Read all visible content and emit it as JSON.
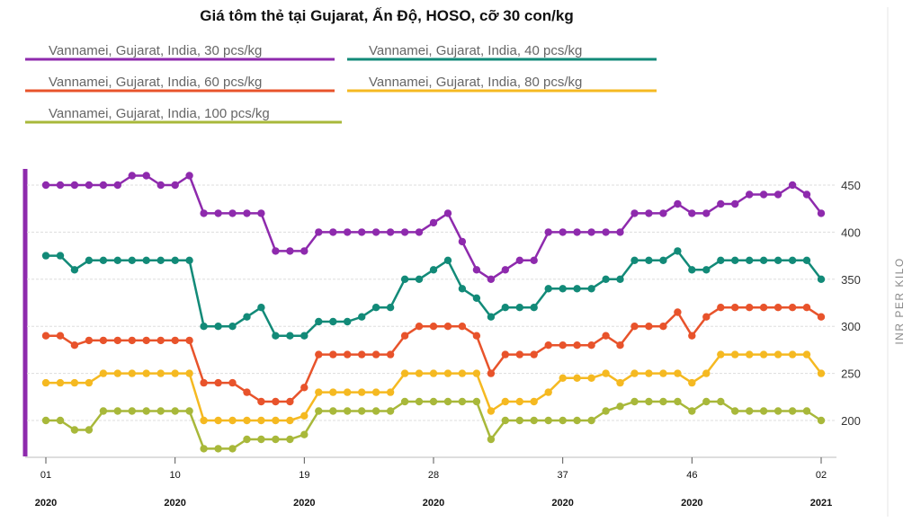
{
  "chart_data": {
    "type": "line",
    "title": "Giá tôm thẻ tại Gujarat, Ấn Độ, HOSO, cỡ 30 con/kg",
    "ylabel": "INR PER KILO",
    "xlabel": "",
    "ylim": [
      155,
      475
    ],
    "yticks": [
      200,
      250,
      300,
      350,
      400,
      450
    ],
    "grid": true,
    "legend_position": "top-left",
    "x_ticks": [
      {
        "week": "01",
        "year": "2020",
        "index": 0
      },
      {
        "week": "10",
        "year": "2020",
        "index": 9
      },
      {
        "week": "19",
        "year": "2020",
        "index": 18
      },
      {
        "week": "28",
        "year": "2020",
        "index": 27
      },
      {
        "week": "37",
        "year": "2020",
        "index": 36
      },
      {
        "week": "46",
        "year": "2020",
        "index": 45
      },
      {
        "week": "02",
        "year": "2021",
        "index": 54
      }
    ],
    "series": [
      {
        "name": "Vannamei, Gujarat, India, 30 pcs/kg",
        "color": "#8e2aad",
        "values": [
          450,
          450,
          450,
          450,
          450,
          450,
          460,
          460,
          450,
          450,
          460,
          420,
          420,
          420,
          420,
          420,
          380,
          380,
          380,
          400,
          400,
          400,
          400,
          400,
          400,
          400,
          400,
          410,
          420,
          390,
          360,
          350,
          360,
          370,
          370,
          400,
          400,
          400,
          400,
          400,
          400,
          420,
          420,
          420,
          430,
          420,
          420,
          430,
          430,
          440,
          440,
          440,
          450,
          440,
          420
        ]
      },
      {
        "name": "Vannamei, Gujarat, India, 40 pcs/kg",
        "color": "#128a78",
        "values": [
          375,
          375,
          360,
          370,
          370,
          370,
          370,
          370,
          370,
          370,
          370,
          300,
          300,
          300,
          310,
          320,
          290,
          290,
          290,
          305,
          305,
          305,
          310,
          320,
          320,
          350,
          350,
          360,
          370,
          340,
          330,
          310,
          320,
          320,
          320,
          340,
          340,
          340,
          340,
          350,
          350,
          370,
          370,
          370,
          380,
          360,
          360,
          370,
          370,
          370,
          370,
          370,
          370,
          370,
          350
        ]
      },
      {
        "name": "Vannamei, Gujarat, India, 60 pcs/kg",
        "color": "#e8532b",
        "values": [
          290,
          290,
          280,
          285,
          285,
          285,
          285,
          285,
          285,
          285,
          285,
          240,
          240,
          240,
          230,
          220,
          220,
          220,
          235,
          270,
          270,
          270,
          270,
          270,
          270,
          290,
          300,
          300,
          300,
          300,
          290,
          250,
          270,
          270,
          270,
          280,
          280,
          280,
          280,
          290,
          280,
          300,
          300,
          300,
          315,
          290,
          310,
          320,
          320,
          320,
          320,
          320,
          320,
          320,
          310
        ]
      },
      {
        "name": "Vannamei, Gujarat, India, 80 pcs/kg",
        "color": "#f5b921",
        "values": [
          240,
          240,
          240,
          240,
          250,
          250,
          250,
          250,
          250,
          250,
          250,
          200,
          200,
          200,
          200,
          200,
          200,
          200,
          205,
          230,
          230,
          230,
          230,
          230,
          230,
          250,
          250,
          250,
          250,
          250,
          250,
          210,
          220,
          220,
          220,
          230,
          245,
          245,
          245,
          250,
          240,
          250,
          250,
          250,
          250,
          240,
          250,
          270,
          270,
          270,
          270,
          270,
          270,
          270,
          250
        ]
      },
      {
        "name": "Vannamei, Gujarat, India, 100 pcs/kg",
        "color": "#a8b83a",
        "values": [
          200,
          200,
          190,
          190,
          210,
          210,
          210,
          210,
          210,
          210,
          210,
          170,
          170,
          170,
          180,
          180,
          180,
          180,
          185,
          210,
          210,
          210,
          210,
          210,
          210,
          220,
          220,
          220,
          220,
          220,
          220,
          180,
          200,
          200,
          200,
          200,
          200,
          200,
          200,
          210,
          215,
          220,
          220,
          220,
          220,
          210,
          220,
          220,
          210,
          210,
          210,
          210,
          210,
          210,
          200
        ]
      }
    ]
  }
}
